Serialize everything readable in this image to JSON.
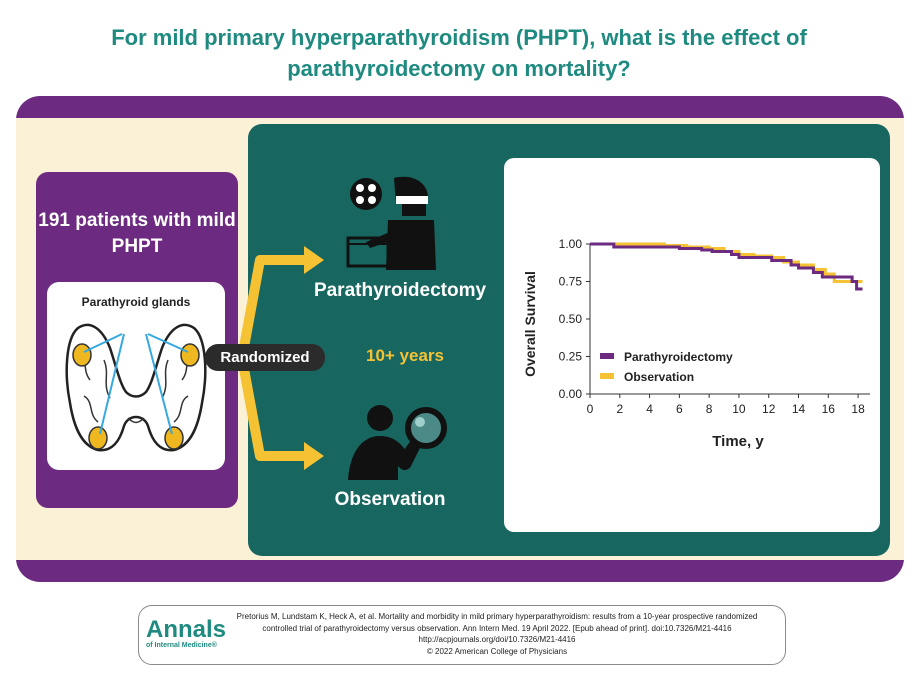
{
  "title": "For mild primary hyperparathyroidism (PHPT), what is the effect of parathyroidectomy on mortality?",
  "population": {
    "patients_text": "191 patients with mild PHPT",
    "gland_label": "Parathyroid glands"
  },
  "design": {
    "randomized_label": "Randomized",
    "duration_label": "10+ years",
    "arm_surgery_label": "Parathyroidectomy",
    "arm_observation_label": "Observation"
  },
  "icons": {
    "thyroid": "thyroid-gland-icon",
    "surgeon": "surgeon-operating-icon",
    "observer": "person-with-magnifier-icon"
  },
  "colors": {
    "teal": "#17665f",
    "purple": "#6c2a80",
    "gold": "#f5c234",
    "cream": "#fbf1d7",
    "title": "#1e8a80"
  },
  "chart_data": {
    "type": "line",
    "xlabel": "Time, y",
    "ylabel": "Overall Survival",
    "xlim": [
      0,
      18.8
    ],
    "ylim": [
      0,
      1.0
    ],
    "xticks": [
      0,
      2,
      4,
      6,
      8,
      10,
      12,
      14,
      16,
      18
    ],
    "yticks": [
      "1.00",
      "0.75",
      "0.50",
      "0.25",
      "0.00"
    ],
    "legend_position": "lower-left",
    "series": [
      {
        "name": "Parathyroidectomy",
        "color": "#6c2a80",
        "x": [
          0,
          1.5,
          1.6,
          5,
          6,
          7.5,
          8.2,
          9.5,
          10,
          11.5,
          12.2,
          13.5,
          14,
          15,
          15.6,
          16.8,
          17.6,
          17.9,
          18.3
        ],
        "y": [
          1.0,
          1.0,
          0.98,
          0.98,
          0.97,
          0.96,
          0.95,
          0.93,
          0.91,
          0.91,
          0.89,
          0.86,
          0.84,
          0.81,
          0.78,
          0.78,
          0.75,
          0.7,
          0.7
        ]
      },
      {
        "name": "Observation",
        "color": "#f5c234",
        "x": [
          0,
          2,
          5,
          6.5,
          8,
          9,
          10,
          11,
          12.2,
          13,
          14,
          15,
          15.8,
          16.4,
          17.8,
          18.3
        ],
        "y": [
          1.0,
          1.0,
          0.99,
          0.98,
          0.97,
          0.95,
          0.93,
          0.92,
          0.91,
          0.88,
          0.86,
          0.83,
          0.8,
          0.75,
          0.75,
          0.75
        ]
      }
    ]
  },
  "citation": {
    "logo_main": "Annals",
    "logo_sub": "of Internal Medicine®",
    "line1": "Pretorius M, Lundstam K, Heck A, et al. Mortality and morbidity in mild primary hyperparathyroidism: results from a 10-year prospective randomized",
    "line2": "controlled trial of parathyroidectomy versus observation. Ann Intern Med. 19 April 2022. [Epub ahead of print]. doi:10.7326/M21-4416",
    "line3": "http://acpjournals.org/doi/10.7326/M21-4416",
    "line4": "© 2022 American College of Physicians"
  }
}
